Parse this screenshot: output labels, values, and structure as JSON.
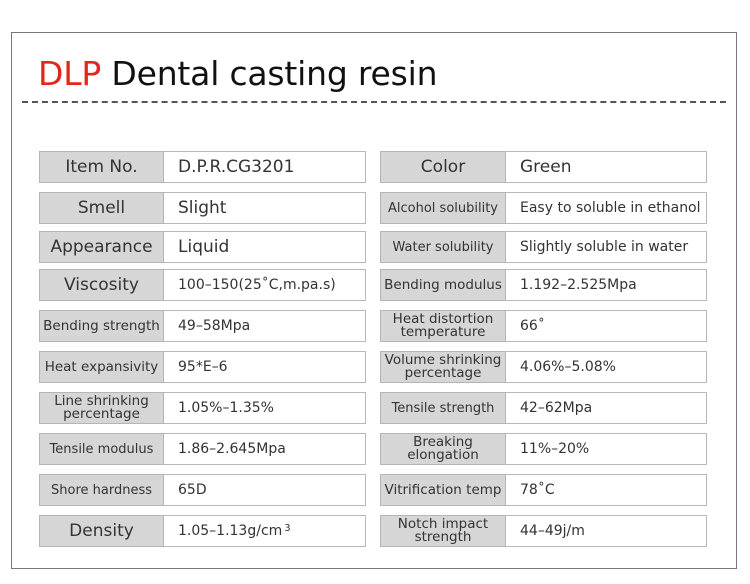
{
  "title": {
    "accent": "DLP",
    "rest": "Dental casting resin"
  },
  "colors": {
    "accent": "#e0271b",
    "label_bg": "#d6d6d6",
    "border": "#b5b5b5"
  },
  "left": [
    {
      "label": "Item No.",
      "value": "D.P.R.CG3201"
    },
    {
      "label": "Smell",
      "value": "Slight"
    },
    {
      "label": "Appearance",
      "value": "Liquid"
    },
    {
      "label": "Viscosity",
      "value": "100–150(25˚C,m.pa.s)"
    },
    {
      "label": "Bending strength",
      "value": "49–58Mpa"
    },
    {
      "label": "Heat expansivity",
      "value": "95*E–6"
    },
    {
      "label": "Line shrinking percentage",
      "value": "1.05%–1.35%"
    },
    {
      "label": "Tensile modulus",
      "value": "1.86–2.645Mpa"
    },
    {
      "label": "Shore hardness",
      "value": "65D"
    },
    {
      "label": "Density",
      "value": "1.05–1.13g/cm",
      "value_sup": "3"
    }
  ],
  "right": [
    {
      "label": "Color",
      "value": "Green"
    },
    {
      "label": "Alcohol solubility",
      "value": "Easy to soluble in ethanol"
    },
    {
      "label": "Water solubility",
      "value": "Slightly soluble in water"
    },
    {
      "label": "Bending modulus",
      "value": "1.192–2.525Mpa"
    },
    {
      "label": "Heat distortion temperature",
      "value": "66˚"
    },
    {
      "label": "Volume shrinking percentage",
      "value": "4.06%–5.08%"
    },
    {
      "label": "Tensile strength",
      "value": "42–62Mpa"
    },
    {
      "label": "Breaking elongation",
      "value": "11%–20%"
    },
    {
      "label": "Vitrification temp",
      "value": "78˚C"
    },
    {
      "label": "Notch impact strength",
      "value": "44–49j/m"
    }
  ]
}
